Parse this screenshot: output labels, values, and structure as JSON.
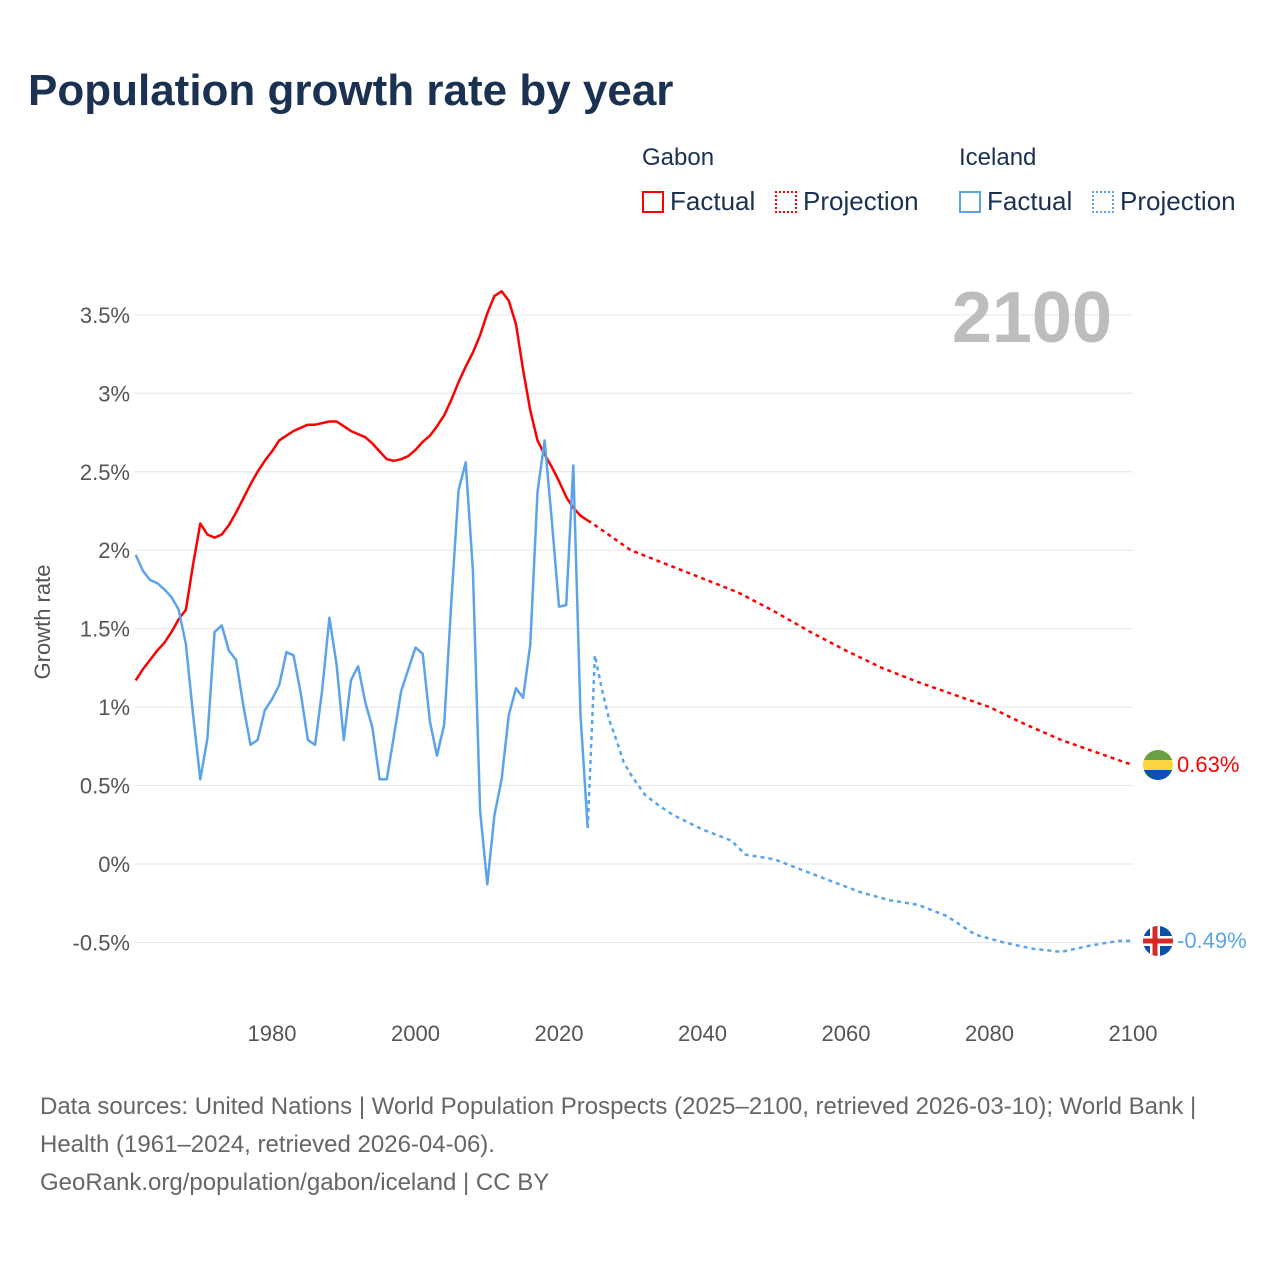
{
  "title": "Population growth rate by year",
  "legend": {
    "groups": [
      {
        "country": "Gabon",
        "factual": "Factual",
        "projection": "Projection",
        "color": "#ff0000"
      },
      {
        "country": "Iceland",
        "factual": "Factual",
        "projection": "Projection",
        "color": "#5ba4ea"
      }
    ]
  },
  "year_label": "2100",
  "end_labels": {
    "gabon": "0.63%",
    "iceland": "-0.49%"
  },
  "footer": {
    "sources": "Data sources: United Nations | World Population Prospects (2025–2100, retrieved 2026-03-10); World Bank | Health (1961–2024, retrieved 2026-04-06).",
    "credit": "GeoRank.org/population/gabon/iceland | CC BY"
  },
  "chart_data": {
    "type": "line",
    "title": "Population growth rate by year",
    "xlabel": "",
    "ylabel": "Growth rate",
    "xlim": [
      1961,
      2100
    ],
    "ylim": [
      -0.75,
      3.8
    ],
    "x_ticks": [
      1980,
      2000,
      2020,
      2040,
      2060,
      2080,
      2100
    ],
    "x_tick_labels": [
      "1980",
      "2000",
      "2020",
      "2040",
      "2060",
      "2080",
      "2100"
    ],
    "y_ticks": [
      -0.5,
      0,
      0.5,
      1,
      1.5,
      2,
      2.5,
      3,
      3.5
    ],
    "y_tick_labels": [
      "-0.5%",
      "0%",
      "0.5%",
      "1%",
      "1.5%",
      "2%",
      "2.5%",
      "3%",
      "3.5%"
    ],
    "grid": true,
    "legend_position": "top-right",
    "series": [
      {
        "name": "Gabon Factual",
        "color": "#ff0000",
        "style": "solid",
        "points": [
          [
            1961,
            1.17
          ],
          [
            1962,
            1.24
          ],
          [
            1963,
            1.3
          ],
          [
            1964,
            1.36
          ],
          [
            1965,
            1.41
          ],
          [
            1966,
            1.48
          ],
          [
            1967,
            1.56
          ],
          [
            1968,
            1.62
          ],
          [
            1969,
            1.91
          ],
          [
            1970,
            2.17
          ],
          [
            1971,
            2.1
          ],
          [
            1972,
            2.08
          ],
          [
            1973,
            2.1
          ],
          [
            1974,
            2.16
          ],
          [
            1975,
            2.24
          ],
          [
            1976,
            2.33
          ],
          [
            1977,
            2.42
          ],
          [
            1978,
            2.5
          ],
          [
            1979,
            2.57
          ],
          [
            1980,
            2.63
          ],
          [
            1981,
            2.7
          ],
          [
            1982,
            2.73
          ],
          [
            1983,
            2.76
          ],
          [
            1984,
            2.78
          ],
          [
            1985,
            2.8
          ],
          [
            1986,
            2.8
          ],
          [
            1987,
            2.81
          ],
          [
            1988,
            2.82
          ],
          [
            1989,
            2.82
          ],
          [
            1990,
            2.79
          ],
          [
            1991,
            2.76
          ],
          [
            1992,
            2.74
          ],
          [
            1993,
            2.72
          ],
          [
            1994,
            2.68
          ],
          [
            1995,
            2.63
          ],
          [
            1996,
            2.58
          ],
          [
            1997,
            2.57
          ],
          [
            1998,
            2.58
          ],
          [
            1999,
            2.6
          ],
          [
            2000,
            2.64
          ],
          [
            2001,
            2.69
          ],
          [
            2002,
            2.73
          ],
          [
            2003,
            2.79
          ],
          [
            2004,
            2.86
          ],
          [
            2005,
            2.96
          ],
          [
            2006,
            3.07
          ],
          [
            2007,
            3.17
          ],
          [
            2008,
            3.26
          ],
          [
            2009,
            3.37
          ],
          [
            2010,
            3.51
          ],
          [
            2011,
            3.62
          ],
          [
            2012,
            3.65
          ],
          [
            2013,
            3.59
          ],
          [
            2014,
            3.44
          ],
          [
            2015,
            3.15
          ],
          [
            2016,
            2.89
          ],
          [
            2017,
            2.7
          ],
          [
            2018,
            2.61
          ],
          [
            2019,
            2.53
          ],
          [
            2020,
            2.44
          ],
          [
            2021,
            2.34
          ],
          [
            2022,
            2.27
          ],
          [
            2023,
            2.22
          ],
          [
            2024,
            2.19
          ]
        ]
      },
      {
        "name": "Gabon Projection",
        "color": "#ff0000",
        "style": "dotted",
        "points": [
          [
            2024,
            2.19
          ],
          [
            2025,
            2.16
          ],
          [
            2030,
            2.0
          ],
          [
            2035,
            1.91
          ],
          [
            2040,
            1.82
          ],
          [
            2045,
            1.73
          ],
          [
            2050,
            1.61
          ],
          [
            2055,
            1.48
          ],
          [
            2060,
            1.36
          ],
          [
            2065,
            1.25
          ],
          [
            2070,
            1.16
          ],
          [
            2075,
            1.08
          ],
          [
            2080,
            1.0
          ],
          [
            2085,
            0.89
          ],
          [
            2090,
            0.79
          ],
          [
            2095,
            0.71
          ],
          [
            2100,
            0.63
          ]
        ]
      },
      {
        "name": "Iceland Factual",
        "color": "#5ba4ea",
        "style": "solid",
        "points": [
          [
            1961,
            1.97
          ],
          [
            1962,
            1.87
          ],
          [
            1963,
            1.81
          ],
          [
            1964,
            1.79
          ],
          [
            1965,
            1.75
          ],
          [
            1966,
            1.7
          ],
          [
            1967,
            1.62
          ],
          [
            1968,
            1.4
          ],
          [
            1969,
            0.95
          ],
          [
            1970,
            0.54
          ],
          [
            1971,
            0.8
          ],
          [
            1972,
            1.48
          ],
          [
            1973,
            1.52
          ],
          [
            1974,
            1.36
          ],
          [
            1975,
            1.3
          ],
          [
            1976,
            1.01
          ],
          [
            1977,
            0.76
          ],
          [
            1978,
            0.79
          ],
          [
            1979,
            0.98
          ],
          [
            1980,
            1.05
          ],
          [
            1981,
            1.14
          ],
          [
            1982,
            1.35
          ],
          [
            1983,
            1.33
          ],
          [
            1984,
            1.09
          ],
          [
            1985,
            0.79
          ],
          [
            1986,
            0.76
          ],
          [
            1987,
            1.11
          ],
          [
            1988,
            1.57
          ],
          [
            1989,
            1.27
          ],
          [
            1990,
            0.79
          ],
          [
            1991,
            1.17
          ],
          [
            1992,
            1.26
          ],
          [
            1993,
            1.03
          ],
          [
            1994,
            0.87
          ],
          [
            1995,
            0.54
          ],
          [
            1996,
            0.54
          ],
          [
            1997,
            0.82
          ],
          [
            1998,
            1.1
          ],
          [
            1999,
            1.24
          ],
          [
            2000,
            1.38
          ],
          [
            2001,
            1.34
          ],
          [
            2002,
            0.91
          ],
          [
            2003,
            0.69
          ],
          [
            2004,
            0.89
          ],
          [
            2005,
            1.68
          ],
          [
            2006,
            2.38
          ],
          [
            2007,
            2.56
          ],
          [
            2008,
            1.87
          ],
          [
            2009,
            0.34
          ],
          [
            2010,
            -0.13
          ],
          [
            2011,
            0.31
          ],
          [
            2012,
            0.54
          ],
          [
            2013,
            0.95
          ],
          [
            2014,
            1.12
          ],
          [
            2015,
            1.06
          ],
          [
            2016,
            1.4
          ],
          [
            2017,
            2.37
          ],
          [
            2018,
            2.7
          ],
          [
            2019,
            2.19
          ],
          [
            2020,
            1.64
          ],
          [
            2021,
            1.65
          ],
          [
            2022,
            2.54
          ],
          [
            2023,
            0.95
          ],
          [
            2024,
            0.23
          ]
        ]
      },
      {
        "name": "Iceland Projection",
        "color": "#5ba4ea",
        "style": "dotted",
        "points": [
          [
            2024,
            0.23
          ],
          [
            2025,
            1.33
          ],
          [
            2026,
            1.11
          ],
          [
            2027,
            0.92
          ],
          [
            2028,
            0.79
          ],
          [
            2029,
            0.65
          ],
          [
            2030,
            0.57
          ],
          [
            2032,
            0.44
          ],
          [
            2034,
            0.37
          ],
          [
            2036,
            0.31
          ],
          [
            2040,
            0.22
          ],
          [
            2044,
            0.15
          ],
          [
            2046,
            0.06
          ],
          [
            2050,
            0.03
          ],
          [
            2054,
            -0.04
          ],
          [
            2058,
            -0.11
          ],
          [
            2062,
            -0.18
          ],
          [
            2066,
            -0.23
          ],
          [
            2070,
            -0.26
          ],
          [
            2074,
            -0.33
          ],
          [
            2078,
            -0.45
          ],
          [
            2082,
            -0.5
          ],
          [
            2086,
            -0.54
          ],
          [
            2090,
            -0.56
          ],
          [
            2094,
            -0.52
          ],
          [
            2098,
            -0.49
          ],
          [
            2100,
            -0.49
          ]
        ]
      }
    ]
  }
}
